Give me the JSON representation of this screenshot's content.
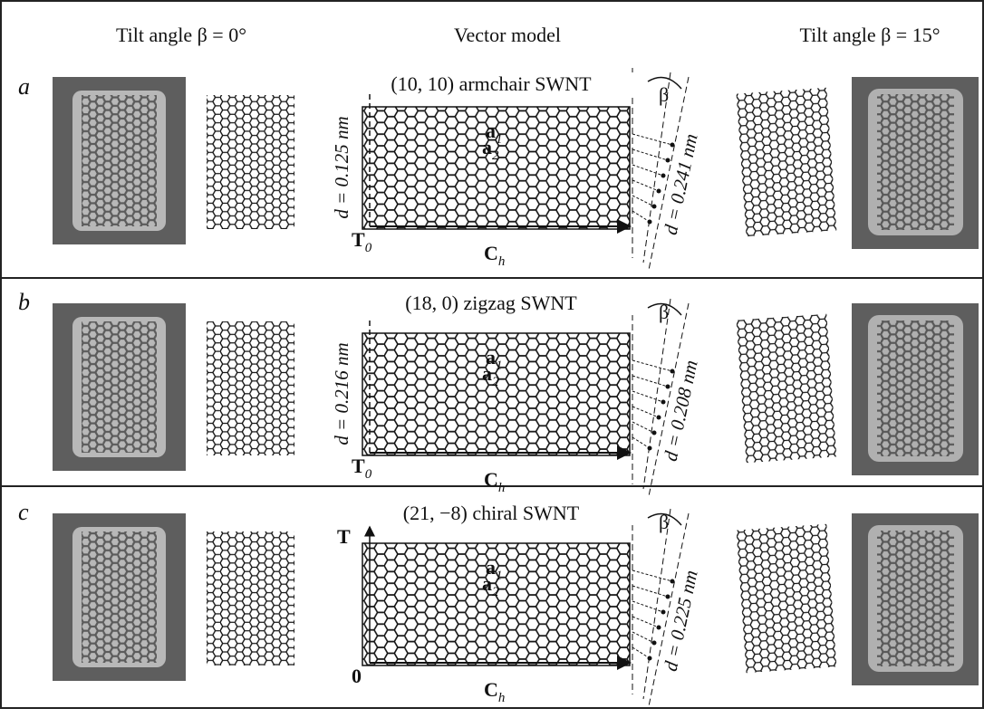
{
  "header": {
    "left": "Tilt angle β = 0°",
    "center": "Vector model",
    "right": "Tilt angle β = 15°"
  },
  "rows": [
    {
      "label": "a",
      "title": "(10, 10) armchair SWNT",
      "d_left": "d = 0.125 nm",
      "d_right": "d = 0.241 nm",
      "beta": "β",
      "a1": {
        "main": "a",
        "sub": "1"
      },
      "a2": {
        "main": "a",
        "sub": "2"
      },
      "origin": {
        "main": "T",
        "sub": "0"
      },
      "vector": {
        "main": "C",
        "sub": "h"
      }
    },
    {
      "label": "b",
      "title": "(18, 0) zigzag SWNT",
      "d_left": "d = 0.216 nm",
      "d_right": "d = 0.208 nm",
      "beta": "β",
      "a1": {
        "main": "a",
        "sub": "1"
      },
      "a2": {
        "main": "a",
        "sub": "2"
      },
      "origin": {
        "main": "T",
        "sub": "0"
      },
      "vector": {
        "main": "C",
        "sub": "h"
      }
    },
    {
      "label": "c",
      "title": "(21, −8) chiral SWNT",
      "d_right": "d = 0.225 nm",
      "beta": "β",
      "a1": {
        "main": "a",
        "sub": "1"
      },
      "a2": {
        "main": "a",
        "sub": "2"
      },
      "origin": {
        "main": "0"
      },
      "axis": "T",
      "vector": {
        "main": "C",
        "sub": "h"
      }
    }
  ]
}
